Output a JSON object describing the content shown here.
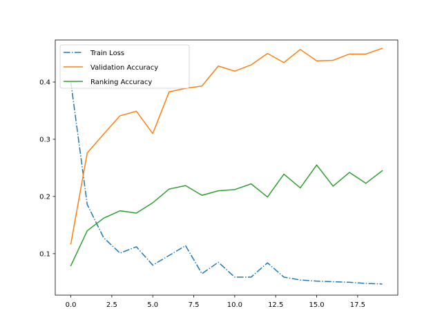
{
  "chart_data": {
    "type": "line",
    "title": "",
    "xlabel": "",
    "ylabel": "",
    "xlim": [
      -0.95,
      19.95
    ],
    "ylim": [
      0.0275,
      0.4735
    ],
    "x_ticks": [
      0.0,
      2.5,
      5.0,
      7.5,
      10.0,
      12.5,
      15.0,
      17.5
    ],
    "x_tick_labels": [
      "0.0",
      "2.5",
      "5.0",
      "7.5",
      "10.0",
      "12.5",
      "15.0",
      "17.5"
    ],
    "y_ticks": [
      0.1,
      0.2,
      0.3,
      0.4
    ],
    "y_tick_labels": [
      "0.1",
      "0.2",
      "0.3",
      "0.4"
    ],
    "grid": false,
    "legend_position": "top-left",
    "x": [
      0,
      1,
      2,
      3,
      4,
      5,
      6,
      7,
      8,
      9,
      10,
      11,
      12,
      13,
      14,
      15,
      16,
      17,
      18,
      19
    ],
    "series": [
      {
        "name": "Train Loss",
        "color": "#1f77b4",
        "dash": "dashdot",
        "values": [
          0.4,
          0.186,
          0.128,
          0.101,
          0.112,
          0.08,
          0.097,
          0.114,
          0.065,
          0.085,
          0.059,
          0.059,
          0.084,
          0.059,
          0.054,
          0.052,
          0.051,
          0.05,
          0.048,
          0.047
        ]
      },
      {
        "name": "Validation Accuracy",
        "color": "#ff7f0e",
        "dash": "solid",
        "values": [
          0.117,
          0.276,
          0.309,
          0.341,
          0.349,
          0.31,
          0.383,
          0.389,
          0.393,
          0.428,
          0.419,
          0.43,
          0.45,
          0.434,
          0.457,
          0.437,
          0.438,
          0.449,
          0.449,
          0.459
        ]
      },
      {
        "name": "Ranking Accuracy",
        "color": "#2ca02c",
        "dash": "solid",
        "values": [
          0.079,
          0.14,
          0.162,
          0.175,
          0.171,
          0.189,
          0.213,
          0.219,
          0.202,
          0.21,
          0.212,
          0.222,
          0.199,
          0.239,
          0.215,
          0.255,
          0.218,
          0.242,
          0.223,
          0.245
        ]
      }
    ]
  }
}
